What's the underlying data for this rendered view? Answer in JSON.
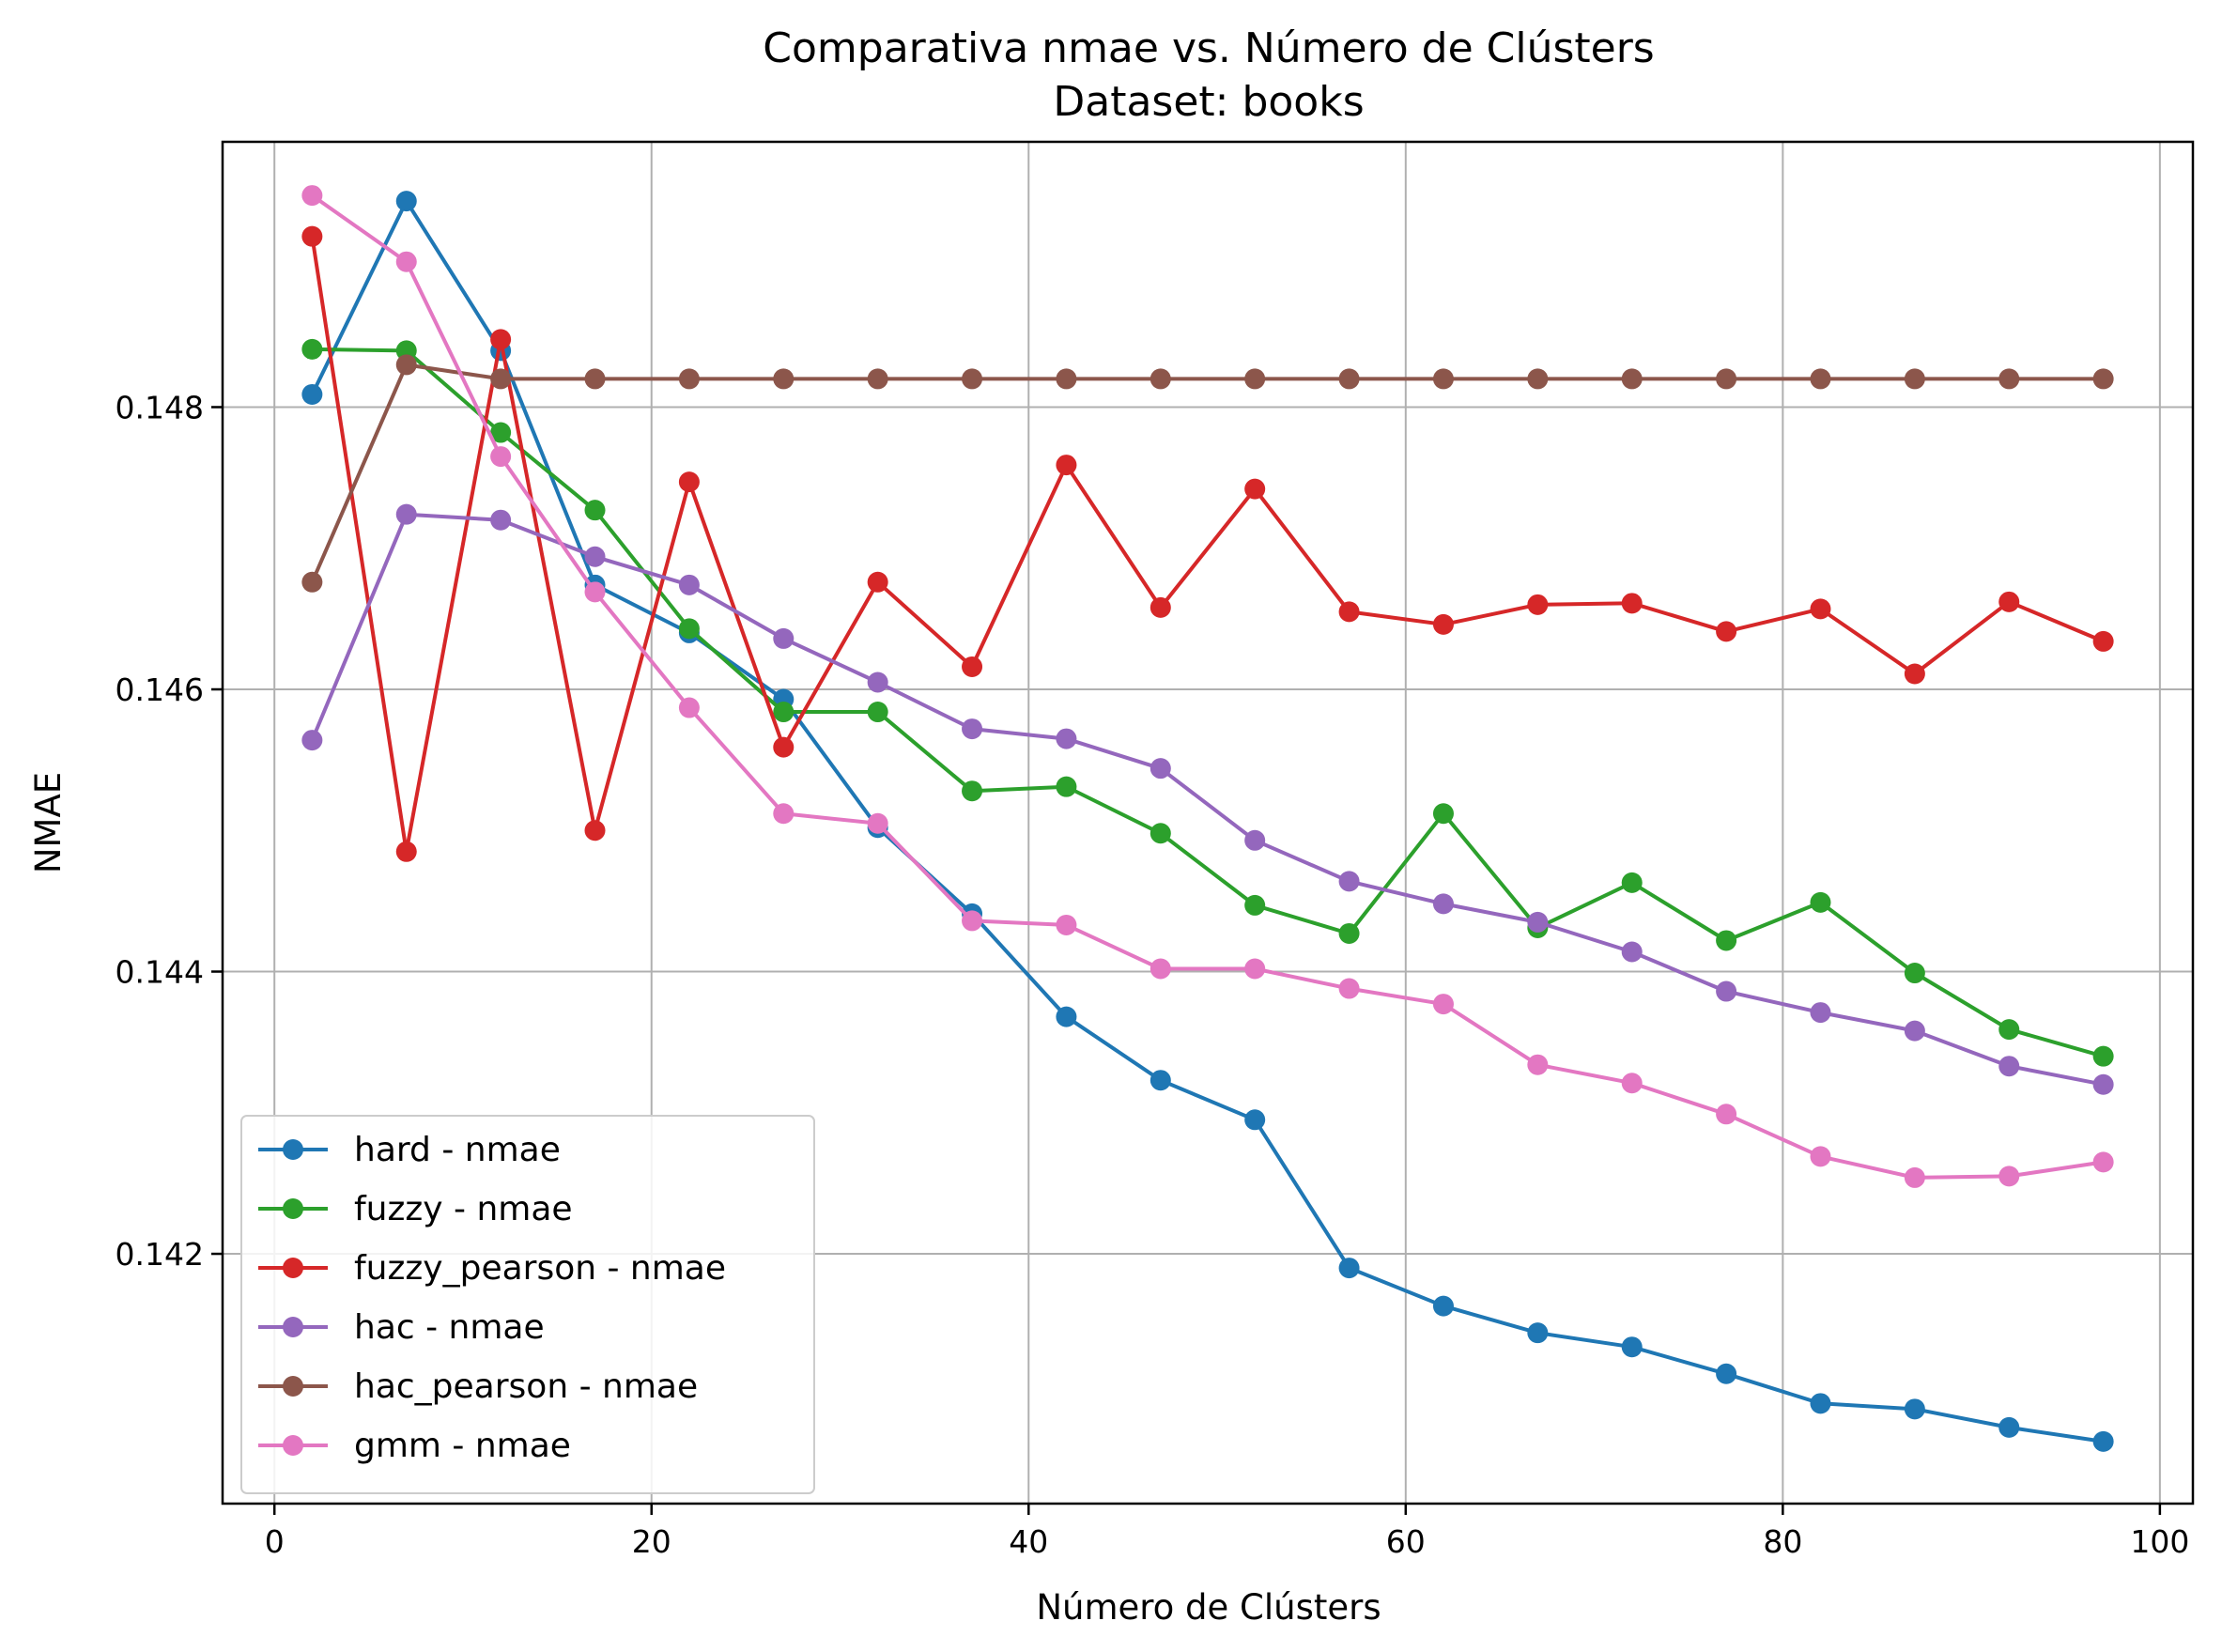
{
  "chart_data": {
    "type": "line",
    "title": "Comparativa nmae vs. Número de Clústers",
    "subtitle": "Dataset: books",
    "xlabel": "Número de Clústers",
    "ylabel": "NMAE",
    "xlim": [
      -2.75,
      101.75
    ],
    "ylim": [
      0.14023,
      0.14988
    ],
    "xticks": [
      0,
      20,
      40,
      60,
      80,
      100
    ],
    "xtick_labels": [
      "0",
      "20",
      "40",
      "60",
      "80",
      "100"
    ],
    "yticks": [
      0.142,
      0.144,
      0.146,
      0.148
    ],
    "ytick_labels": [
      "0.142",
      "0.144",
      "0.146",
      "0.148"
    ],
    "grid": true,
    "legend_position": "lower-left",
    "x": [
      2,
      7,
      12,
      17,
      22,
      27,
      32,
      37,
      42,
      47,
      52,
      57,
      62,
      67,
      72,
      77,
      82,
      87,
      92,
      97
    ],
    "series": [
      {
        "name": "hard - nmae",
        "color": "#1f77b4",
        "values": [
          0.14809,
          0.14946,
          0.1484,
          0.14674,
          0.1464,
          0.14593,
          0.14502,
          0.14441,
          0.14368,
          0.14323,
          0.14295,
          0.1419,
          0.14163,
          0.14144,
          0.14134,
          0.14115,
          0.14094,
          0.1409,
          0.14077,
          0.14067
        ]
      },
      {
        "name": "fuzzy - nmae",
        "color": "#2ca02c",
        "values": [
          0.14841,
          0.1484,
          0.14782,
          0.14727,
          0.14643,
          0.14584,
          0.14584,
          0.14528,
          0.14531,
          0.14498,
          0.14447,
          0.14427,
          0.14512,
          0.14431,
          0.14463,
          0.14422,
          0.14449,
          0.14399,
          0.14359,
          0.1434
        ]
      },
      {
        "name": "fuzzy_pearson - nmae",
        "color": "#d62728",
        "values": [
          0.14921,
          0.14485,
          0.14848,
          0.145,
          0.14747,
          0.14559,
          0.14676,
          0.14616,
          0.14759,
          0.14658,
          0.14742,
          0.14655,
          0.14646,
          0.1466,
          0.14661,
          0.14641,
          0.14657,
          0.14611,
          0.14662,
          0.14634
        ]
      },
      {
        "name": "hac - nmae",
        "color": "#9467bd",
        "values": [
          0.14564,
          0.14724,
          0.1472,
          0.14694,
          0.14674,
          0.14636,
          0.14605,
          0.14572,
          0.14565,
          0.14544,
          0.14493,
          0.14464,
          0.14448,
          0.14435,
          0.14414,
          0.14386,
          0.14371,
          0.14358,
          0.14333,
          0.1432
        ]
      },
      {
        "name": "hac_pearson - nmae",
        "color": "#8c564b",
        "values": [
          0.14676,
          0.1483,
          0.1482,
          0.1482,
          0.1482,
          0.1482,
          0.1482,
          0.1482,
          0.1482,
          0.1482,
          0.1482,
          0.1482,
          0.1482,
          0.1482,
          0.1482,
          0.1482,
          0.1482,
          0.1482,
          0.1482,
          0.1482
        ]
      },
      {
        "name": "gmm - nmae",
        "color": "#e377c2",
        "values": [
          0.1495,
          0.14903,
          0.14765,
          0.14669,
          0.14587,
          0.14512,
          0.14505,
          0.14436,
          0.14433,
          0.14402,
          0.14402,
          0.14388,
          0.14377,
          0.14334,
          0.14321,
          0.14299,
          0.14269,
          0.14254,
          0.14255,
          0.14265
        ]
      }
    ]
  }
}
